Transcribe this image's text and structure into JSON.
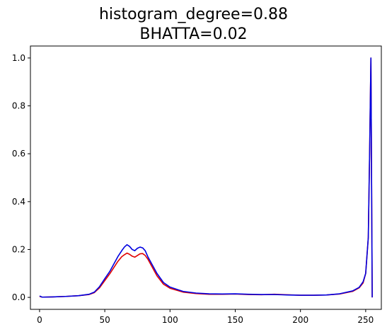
{
  "chart_data": {
    "type": "line",
    "title": "histogram_degree=0.88",
    "subtitle": "BHATTA=0.02",
    "xlabel": "",
    "ylabel": "",
    "xlim": [
      -7,
      262
    ],
    "ylim": [
      -0.05,
      1.05
    ],
    "x_ticks": [
      0,
      50,
      100,
      150,
      200,
      250
    ],
    "y_ticks": [
      0.0,
      0.2,
      0.4,
      0.6,
      0.8,
      1.0
    ],
    "x_tick_labels": [
      "0",
      "50",
      "100",
      "150",
      "200",
      "250"
    ],
    "y_tick_labels": [
      "0.0",
      "0.2",
      "0.4",
      "0.6",
      "0.8",
      "1.0"
    ],
    "grid": false,
    "legend": "none",
    "series": [
      {
        "color": "#e00000",
        "points": [
          [
            0,
            0.004
          ],
          [
            2,
            0.001
          ],
          [
            10,
            0.002
          ],
          [
            20,
            0.004
          ],
          [
            30,
            0.007
          ],
          [
            38,
            0.012
          ],
          [
            42,
            0.02
          ],
          [
            46,
            0.04
          ],
          [
            50,
            0.07
          ],
          [
            54,
            0.1
          ],
          [
            57,
            0.125
          ],
          [
            60,
            0.15
          ],
          [
            63,
            0.17
          ],
          [
            65,
            0.178
          ],
          [
            67,
            0.185
          ],
          [
            69,
            0.18
          ],
          [
            71,
            0.172
          ],
          [
            73,
            0.168
          ],
          [
            75,
            0.175
          ],
          [
            77,
            0.182
          ],
          [
            79,
            0.183
          ],
          [
            81,
            0.175
          ],
          [
            83,
            0.16
          ],
          [
            86,
            0.13
          ],
          [
            90,
            0.09
          ],
          [
            95,
            0.055
          ],
          [
            100,
            0.038
          ],
          [
            110,
            0.022
          ],
          [
            120,
            0.016
          ],
          [
            130,
            0.013
          ],
          [
            140,
            0.013
          ],
          [
            150,
            0.014
          ],
          [
            160,
            0.012
          ],
          [
            170,
            0.011
          ],
          [
            180,
            0.013
          ],
          [
            185,
            0.012
          ],
          [
            190,
            0.011
          ],
          [
            200,
            0.009
          ],
          [
            210,
            0.009
          ],
          [
            220,
            0.01
          ],
          [
            230,
            0.014
          ],
          [
            240,
            0.025
          ],
          [
            245,
            0.04
          ],
          [
            248,
            0.06
          ],
          [
            250,
            0.1
          ],
          [
            252,
            0.25
          ],
          [
            253,
            0.6
          ],
          [
            254,
            1.0
          ],
          [
            255,
            0.0
          ]
        ]
      },
      {
        "color": "#0000e0",
        "points": [
          [
            0,
            0.006
          ],
          [
            2,
            0.001
          ],
          [
            10,
            0.002
          ],
          [
            20,
            0.004
          ],
          [
            30,
            0.007
          ],
          [
            38,
            0.013
          ],
          [
            42,
            0.022
          ],
          [
            46,
            0.045
          ],
          [
            50,
            0.078
          ],
          [
            54,
            0.11
          ],
          [
            57,
            0.14
          ],
          [
            60,
            0.17
          ],
          [
            63,
            0.195
          ],
          [
            65,
            0.21
          ],
          [
            67,
            0.22
          ],
          [
            69,
            0.213
          ],
          [
            71,
            0.2
          ],
          [
            73,
            0.195
          ],
          [
            75,
            0.205
          ],
          [
            77,
            0.21
          ],
          [
            79,
            0.207
          ],
          [
            81,
            0.195
          ],
          [
            83,
            0.17
          ],
          [
            86,
            0.14
          ],
          [
            90,
            0.1
          ],
          [
            95,
            0.062
          ],
          [
            100,
            0.043
          ],
          [
            110,
            0.025
          ],
          [
            120,
            0.018
          ],
          [
            130,
            0.015
          ],
          [
            140,
            0.014
          ],
          [
            150,
            0.015
          ],
          [
            160,
            0.013
          ],
          [
            170,
            0.012
          ],
          [
            180,
            0.012
          ],
          [
            185,
            0.011
          ],
          [
            190,
            0.01
          ],
          [
            200,
            0.009
          ],
          [
            210,
            0.009
          ],
          [
            220,
            0.01
          ],
          [
            230,
            0.015
          ],
          [
            240,
            0.027
          ],
          [
            245,
            0.042
          ],
          [
            248,
            0.065
          ],
          [
            250,
            0.1
          ],
          [
            252,
            0.25
          ],
          [
            253,
            0.6
          ],
          [
            254,
            1.0
          ],
          [
            255,
            0.0
          ]
        ]
      }
    ]
  }
}
